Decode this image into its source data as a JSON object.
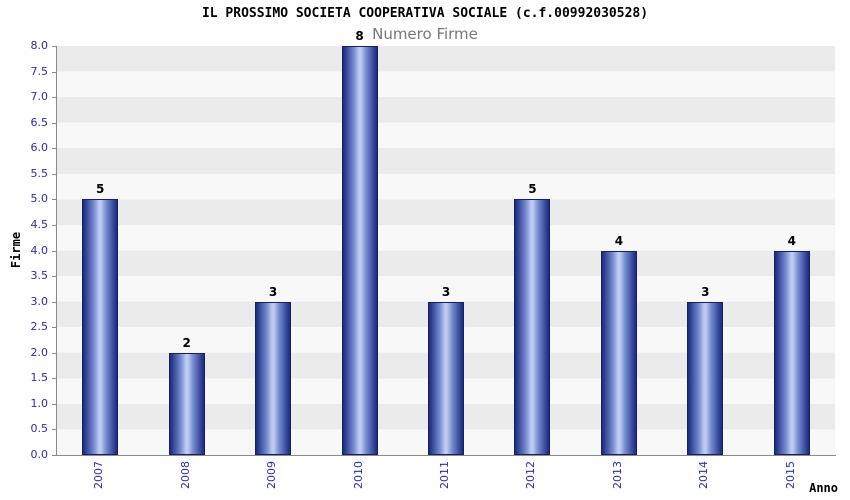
{
  "chart_data": {
    "type": "bar",
    "title": "IL PROSSIMO SOCIETA COOPERATIVA SOCIALE (c.f.00992030528)",
    "subtitle": "Numero Firme",
    "xlabel": "Anno",
    "ylabel": "Firme",
    "categories": [
      "2007",
      "2008",
      "2009",
      "2010",
      "2011",
      "2012",
      "2013",
      "2014",
      "2015"
    ],
    "values": [
      5,
      2,
      3,
      8,
      3,
      5,
      4,
      3,
      4
    ],
    "ylim": [
      0.0,
      8.0
    ],
    "ytick_step": 0.5,
    "grid": "horizontal-bands",
    "legend": "none",
    "colors": {
      "bar_edge": "#1c2a7a",
      "bar_center": "#bccbf2",
      "bar_border": "#16215e",
      "tick_label": "#2b2bb4",
      "band_dark": "#ebebeb",
      "band_light": "#f8f8f8",
      "axis_line": "#8a8a8a",
      "subtitle_text": "#777777",
      "title_text": "#000000"
    }
  }
}
